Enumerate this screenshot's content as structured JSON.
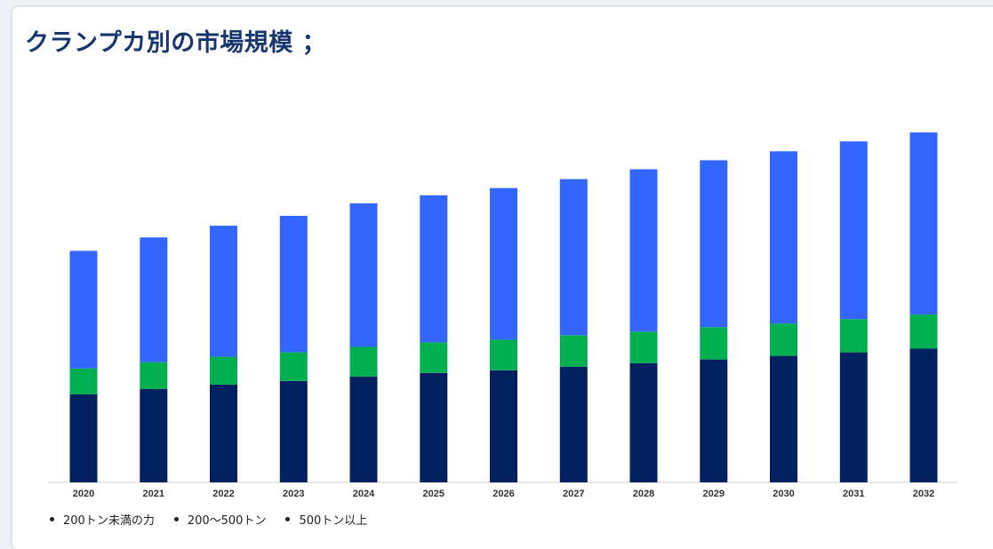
{
  "title": "クランプカ別の市場規模 ；",
  "chart_data": {
    "type": "bar",
    "stacked": true,
    "categories": [
      "2020",
      "2021",
      "2022",
      "2023",
      "2024",
      "2025",
      "2026",
      "2027",
      "2028",
      "2029",
      "2030",
      "2031",
      "2032"
    ],
    "series": [
      {
        "name": "200トン未満の力",
        "color": "#00205f",
        "values": [
          98,
          104,
          109,
          113,
          118,
          122,
          125,
          129,
          133,
          137,
          141,
          145,
          149
        ]
      },
      {
        "name": "200〜500トン",
        "color": "#00b050",
        "values": [
          29,
          30,
          31,
          32,
          33,
          34,
          34,
          35,
          35,
          36,
          36,
          37,
          38
        ]
      },
      {
        "name": "500トン以上",
        "color": "#3366ff",
        "values": [
          131,
          139,
          146,
          152,
          160,
          164,
          169,
          174,
          181,
          186,
          192,
          198,
          203
        ]
      }
    ],
    "ylim": [
      0,
      400
    ],
    "grid": false,
    "legend_position": "bottom-left"
  }
}
